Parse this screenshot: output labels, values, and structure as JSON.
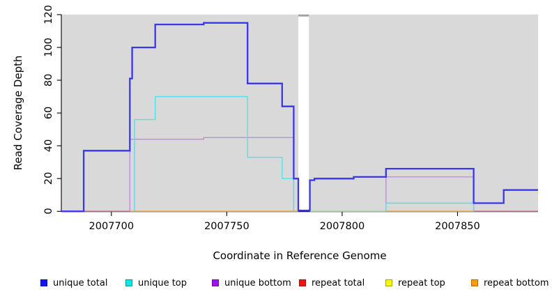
{
  "chart_data": {
    "type": "line",
    "subtype": "step-coverage-plot",
    "title": "",
    "xlabel": "Coordinate in Reference Genome",
    "ylabel": "Read Coverage Depth",
    "xlim": [
      2007678.3,
      2007884.9
    ],
    "ylim": [
      0,
      120
    ],
    "x_ticks": [
      2007700,
      2007750,
      2007800,
      2007850
    ],
    "y_ticks": [
      0,
      20,
      40,
      60,
      80,
      100,
      120
    ],
    "grid": false,
    "plot_background": "#d9d9d9",
    "axis_color": "#000000",
    "gap_band": {
      "x1": 2007781,
      "x2": 2007785.6,
      "fill": "#ffffff",
      "cap_fill": "#a1a1a1"
    },
    "series": [
      {
        "name": "unique total",
        "color": "#3a35ef",
        "line_width": 2.3,
        "draw": true,
        "paths": [
          [
            [
              2007678.3,
              0
            ],
            [
              2007688,
              0
            ],
            [
              2007688,
              37
            ],
            [
              2007708,
              37
            ],
            [
              2007708,
              81
            ],
            [
              2007709,
              81
            ],
            [
              2007709,
              100
            ],
            [
              2007719,
              100
            ],
            [
              2007719,
              114
            ],
            [
              2007740,
              114
            ],
            [
              2007740,
              115
            ],
            [
              2007759,
              115
            ],
            [
              2007759,
              78
            ],
            [
              2007774,
              78
            ],
            [
              2007774,
              64
            ],
            [
              2007779,
              64
            ],
            [
              2007779,
              20
            ],
            [
              2007781,
              20
            ],
            [
              2007781,
              0.5
            ],
            [
              2007786,
              0.5
            ],
            [
              2007786,
              19
            ],
            [
              2007788,
              19
            ],
            [
              2007788,
              20
            ],
            [
              2007805,
              20
            ],
            [
              2007805,
              21
            ],
            [
              2007819,
              21
            ],
            [
              2007819,
              26
            ],
            [
              2007857,
              26
            ],
            [
              2007857,
              5
            ],
            [
              2007870,
              5
            ],
            [
              2007870,
              13
            ],
            [
              2007884.9,
              13
            ]
          ]
        ]
      },
      {
        "name": "unique top",
        "color": "#55e0e6",
        "line_width": 1.4,
        "draw": true,
        "paths": [
          [
            [
              2007710,
              0
            ],
            [
              2007710,
              56
            ],
            [
              2007719,
              56
            ],
            [
              2007719,
              70
            ],
            [
              2007759,
              70
            ],
            [
              2007759,
              33
            ],
            [
              2007774,
              33
            ],
            [
              2007774,
              20
            ],
            [
              2007779,
              20
            ],
            [
              2007779,
              0
            ]
          ],
          [
            [
              2007819,
              0
            ],
            [
              2007819,
              5
            ],
            [
              2007857,
              5
            ],
            [
              2007857,
              0
            ]
          ]
        ]
      },
      {
        "name": "unique bottom",
        "color": "#bd86e2",
        "line_width": 1.3,
        "draw": true,
        "paths": [
          [
            [
              2007708,
              0
            ],
            [
              2007708,
              44
            ],
            [
              2007740,
              44
            ],
            [
              2007740,
              45
            ],
            [
              2007779,
              45
            ],
            [
              2007779,
              0
            ]
          ],
          [
            [
              2007819,
              0
            ],
            [
              2007819,
              21
            ],
            [
              2007857,
              21
            ],
            [
              2007857,
              0
            ]
          ]
        ]
      },
      {
        "name": "repeat total",
        "color": "#ee1111",
        "line_width": 1.3,
        "draw": false,
        "paths": [
          [
            [
              2007678.3,
              0
            ],
            [
              2007884.9,
              0
            ]
          ]
        ]
      },
      {
        "name": "repeat top",
        "color": "#f5f500",
        "line_width": 1.3,
        "draw": false,
        "paths": [
          [
            [
              2007678.3,
              0
            ],
            [
              2007884.9,
              0
            ]
          ]
        ]
      },
      {
        "name": "repeat bottom",
        "color": "#ff9d00",
        "line_width": 1.5,
        "draw": false,
        "paths": [
          [
            [
              2007708,
              0
            ],
            [
              2007884.9,
              0
            ]
          ]
        ]
      }
    ],
    "baseline_segments": [
      {
        "x1": 2007688,
        "x2": 2007708,
        "color": "#d15a7e"
      },
      {
        "x1": 2007708,
        "x2": 2007781,
        "color": "#ff9d00"
      },
      {
        "x1": 2007786,
        "x2": 2007819,
        "color": "#92d792"
      },
      {
        "x1": 2007819,
        "x2": 2007857,
        "color": "#ff9d00"
      },
      {
        "x1": 2007857,
        "x2": 2007884.9,
        "color": "#d15a7e"
      }
    ],
    "legend": {
      "position": "bottom",
      "items": [
        {
          "label": "unique total",
          "fill": "#1414f0",
          "border": "#0000b4"
        },
        {
          "label": "unique top",
          "fill": "#00e8e8",
          "border": "#009c9c"
        },
        {
          "label": "unique bottom",
          "fill": "#9d13ec",
          "border": "#6a0ca0"
        },
        {
          "label": "repeat total",
          "fill": "#f01111",
          "border": "#a30909"
        },
        {
          "label": "repeat top",
          "fill": "#f8f800",
          "border": "#a8a800"
        },
        {
          "label": "repeat bottom",
          "fill": "#ff9d00",
          "border": "#b06c00"
        }
      ]
    }
  }
}
